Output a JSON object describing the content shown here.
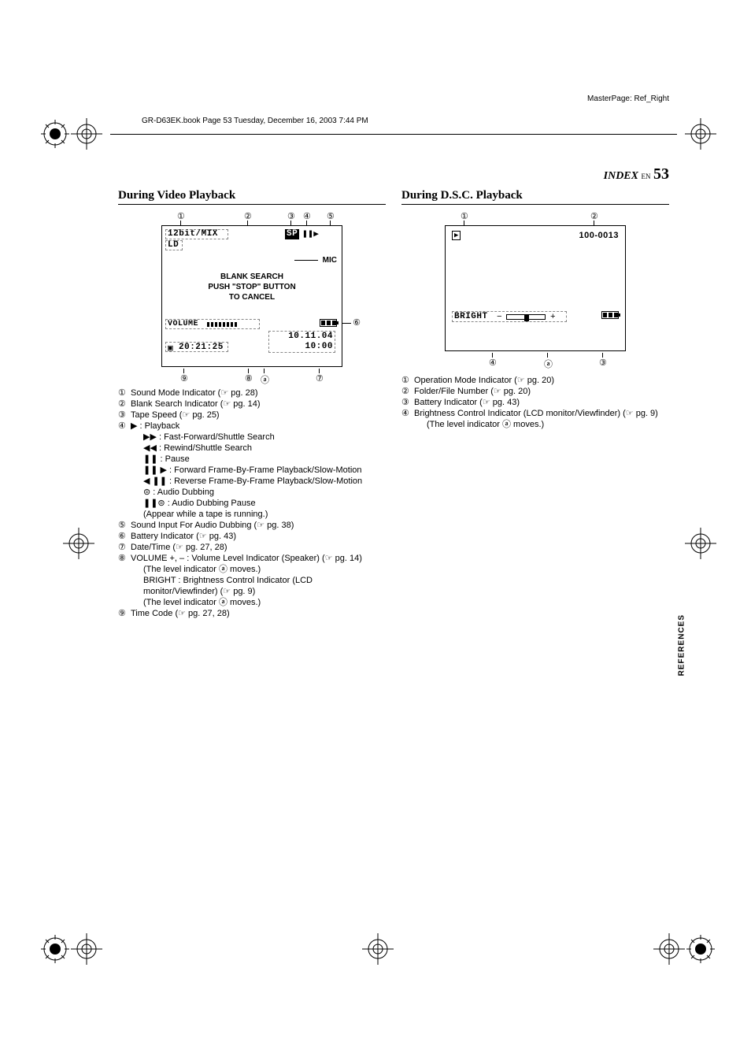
{
  "masterpage": "MasterPage: Ref_Right",
  "book_header": "GR-D63EK.book  Page 53  Tuesday, December 16, 2003  7:44 PM",
  "index": {
    "label": "INDEX",
    "lang": "EN",
    "page": "53"
  },
  "side_label": "REFERENCES",
  "video": {
    "title": "During Video Playback",
    "display": {
      "sound_mode": "12bit/MIX",
      "ld": "LD",
      "sp": "SP",
      "mic": "MIC",
      "blank": "BLANK SEARCH",
      "push": "PUSH \"STOP\" BUTTON",
      "cancel": "TO CANCEL",
      "volume": "VOLUME",
      "date": "10.11.04",
      "time": "10:00",
      "timecode": "20:21:25"
    },
    "callouts": [
      "①",
      "②",
      "③",
      "④",
      "⑤",
      "⑥",
      "⑦",
      "⑧",
      "⑨",
      "ⓐ"
    ],
    "items": [
      {
        "n": "①",
        "text": "Sound Mode Indicator (☞ pg. 28)"
      },
      {
        "n": "②",
        "text": "Blank Search Indicator (☞ pg. 14)"
      },
      {
        "n": "③",
        "text": "Tape Speed (☞ pg. 25)"
      },
      {
        "n": "④",
        "text": "▶ : Playback"
      },
      {
        "n": "",
        "text": "▶▶ : Fast-Forward/Shuttle Search",
        "indent": true
      },
      {
        "n": "",
        "text": "◀◀ : Rewind/Shuttle Search",
        "indent": true
      },
      {
        "n": "",
        "text": "❚❚ : Pause",
        "indent": true
      },
      {
        "n": "",
        "text": "❚❚ ▶ : Forward Frame-By-Frame Playback/Slow-Motion",
        "indent": true
      },
      {
        "n": "",
        "text": "◀ ❚❚ : Reverse Frame-By-Frame Playback/Slow-Motion",
        "indent": true
      },
      {
        "n": "",
        "text": "⊜ : Audio Dubbing",
        "indent": true
      },
      {
        "n": "",
        "text": "❚❚⊜ : Audio Dubbing Pause",
        "indent": true
      },
      {
        "n": "",
        "text": "(Appear while a tape is running.)",
        "indent": true
      },
      {
        "n": "⑤",
        "text": "Sound Input For Audio Dubbing (☞ pg. 38)"
      },
      {
        "n": "⑥",
        "text": "Battery Indicator (☞ pg. 43)"
      },
      {
        "n": "⑦",
        "text": "Date/Time (☞ pg. 27, 28)"
      },
      {
        "n": "⑧",
        "text": "VOLUME +, – : Volume Level Indicator (Speaker) (☞ pg. 14)"
      },
      {
        "n": "",
        "text": "(The level indicator ⓐ moves.)",
        "indent": true
      },
      {
        "n": "",
        "text": "BRIGHT : Brightness Control Indicator (LCD monitor/Viewfinder) (☞ pg. 9)",
        "indent": true
      },
      {
        "n": "",
        "text": "(The level indicator ⓐ moves.)",
        "indent": true
      },
      {
        "n": "⑨",
        "text": "Time Code (☞ pg. 27, 28)"
      }
    ]
  },
  "dsc": {
    "title": "During D.S.C. Playback",
    "display": {
      "folder": "100-0013",
      "bright": "BRIGHT"
    },
    "callouts": [
      "①",
      "②",
      "③",
      "④",
      "ⓐ"
    ],
    "items": [
      {
        "n": "①",
        "text": "Operation Mode Indicator (☞ pg. 20)"
      },
      {
        "n": "②",
        "text": "Folder/File Number (☞ pg. 20)"
      },
      {
        "n": "③",
        "text": "Battery Indicator (☞ pg. 43)"
      },
      {
        "n": "④",
        "text": "Brightness Control Indicator (LCD monitor/Viewfinder) (☞ pg. 9)"
      },
      {
        "n": "",
        "text": "(The level indicator ⓐ moves.)",
        "indent": true
      }
    ]
  }
}
